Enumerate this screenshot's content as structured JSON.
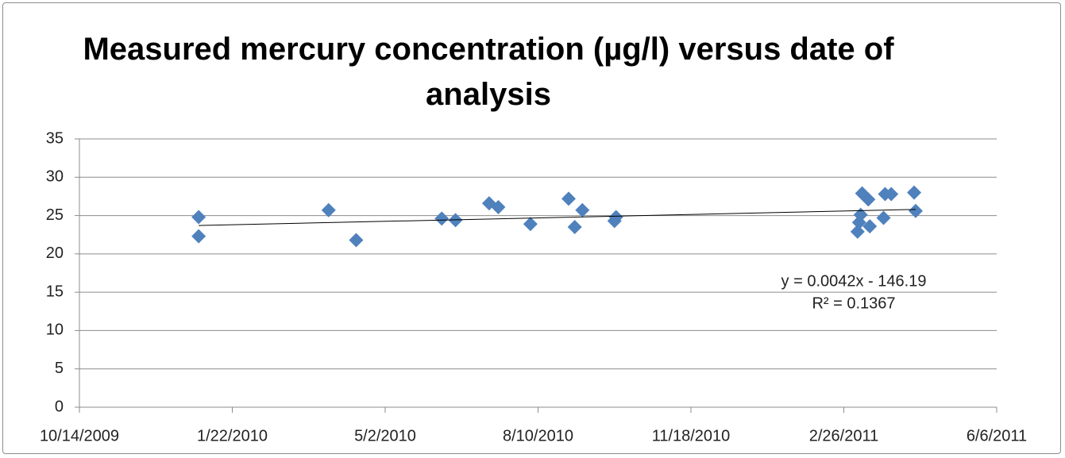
{
  "chart_data": {
    "type": "scatter",
    "title": "Measured mercury concentration (µg/l) versus date of analysis",
    "x": [
      "12/31/2009",
      "12/31/2009",
      "3/26/2010",
      "4/13/2010",
      "6/8/2010",
      "6/17/2010",
      "7/9/2010",
      "7/15/2010",
      "8/5/2010",
      "8/30/2010",
      "9/3/2010",
      "9/8/2010",
      "9/29/2010",
      "9/30/2010",
      "3/7/2011",
      "3/8/2011",
      "3/9/2011",
      "3/10/2011",
      "3/14/2011",
      "3/15/2011",
      "3/24/2011",
      "3/25/2011",
      "3/29/2011",
      "4/13/2011",
      "4/14/2011"
    ],
    "values": [
      24.8,
      22.3,
      25.7,
      21.8,
      24.6,
      24.4,
      26.6,
      26.1,
      23.9,
      27.2,
      23.5,
      25.7,
      24.3,
      24.8,
      22.9,
      24.1,
      25.1,
      27.9,
      27.1,
      23.6,
      24.7,
      27.8,
      27.8,
      28.0,
      25.6
    ],
    "color": "#4f81bd",
    "trendline": {
      "x": [
        "12/31/2009",
        "4/14/2011"
      ],
      "values": [
        23.7,
        25.8
      ],
      "color": "#000000"
    },
    "annotations": [
      "y = 0.0042x - 146.19",
      "R² = 0.1367"
    ],
    "xlim": [
      "10/14/2009",
      "6/6/2011"
    ],
    "xticks": [
      "10/14/2009",
      "1/22/2010",
      "5/2/2010",
      "8/10/2010",
      "11/18/2010",
      "2/26/2011",
      "6/6/2011"
    ],
    "ylim": [
      0,
      35
    ],
    "yticks": [
      0,
      5,
      10,
      15,
      20,
      25,
      30,
      35
    ],
    "grid": true
  }
}
